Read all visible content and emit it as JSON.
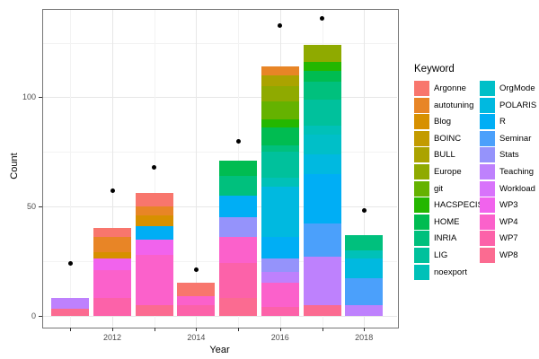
{
  "chart_data": {
    "type": "bar",
    "stacked": true,
    "title": "",
    "xlabel": "Year",
    "ylabel": "Count",
    "legend_title": "Keyword",
    "legend_position": "right",
    "legend_columns": 2,
    "legend_col1_rows": 12,
    "grid": true,
    "x_years": [
      2011,
      2012,
      2013,
      2014,
      2015,
      2016,
      2017,
      2018
    ],
    "x_tick_labels": [
      "2012",
      "2014",
      "2016",
      "2018"
    ],
    "x_labeled_years": [
      2012,
      2014,
      2016,
      2018
    ],
    "y_tick_labels": [
      "0",
      "50",
      "100"
    ],
    "y_ticks": [
      0,
      50,
      100
    ],
    "y_minor_ticks": [
      25,
      75,
      125
    ],
    "ylim": [
      -5,
      140
    ],
    "keywords": [
      {
        "label": "Argonne",
        "color": "#F8766D"
      },
      {
        "label": "autotuning",
        "color": "#E88526"
      },
      {
        "label": "Blog",
        "color": "#D79000"
      },
      {
        "label": "BOINC",
        "color": "#C39B00"
      },
      {
        "label": "BULL",
        "color": "#ABA300"
      },
      {
        "label": "Europe",
        "color": "#8FAA00"
      },
      {
        "label": "git",
        "color": "#65B200"
      },
      {
        "label": "HACSPECIS",
        "color": "#24B700"
      },
      {
        "label": "HOME",
        "color": "#00BC51"
      },
      {
        "label": "INRIA",
        "color": "#00C07D"
      },
      {
        "label": "LIG",
        "color": "#00C19C"
      },
      {
        "label": "noexport",
        "color": "#00C1B8"
      },
      {
        "label": "OrgMode",
        "color": "#00BFC8"
      },
      {
        "label": "POLARIS",
        "color": "#00B9E0"
      },
      {
        "label": "R",
        "color": "#00AEF5"
      },
      {
        "label": "Seminar",
        "color": "#4BA0FB"
      },
      {
        "label": "Stats",
        "color": "#9593FB"
      },
      {
        "label": "Teaching",
        "color": "#BE81FD"
      },
      {
        "label": "Workload",
        "color": "#D873FB"
      },
      {
        "label": "WP3",
        "color": "#F163ED"
      },
      {
        "label": "WP4",
        "color": "#FB61CB"
      },
      {
        "label": "WP7",
        "color": "#FC62A9"
      },
      {
        "label": "WP8",
        "color": "#FB6B91"
      }
    ],
    "bars": [
      {
        "year": 2011,
        "total": 8,
        "segments": [
          {
            "keyword": "Teaching",
            "value": 5
          },
          {
            "keyword": "WP8",
            "value": 3
          }
        ]
      },
      {
        "year": 2012,
        "total": 40,
        "segments": [
          {
            "keyword": "Argonne",
            "value": 4
          },
          {
            "keyword": "autotuning",
            "value": 7
          },
          {
            "keyword": "Blog",
            "value": 3
          },
          {
            "keyword": "WP3",
            "value": 5
          },
          {
            "keyword": "WP4",
            "value": 13
          },
          {
            "keyword": "WP7",
            "value": 8
          }
        ]
      },
      {
        "year": 2013,
        "total": 56,
        "segments": [
          {
            "keyword": "Argonne",
            "value": 6
          },
          {
            "keyword": "autotuning",
            "value": 4
          },
          {
            "keyword": "Blog",
            "value": 5
          },
          {
            "keyword": "R",
            "value": 6
          },
          {
            "keyword": "WP3",
            "value": 7
          },
          {
            "keyword": "WP4",
            "value": 23
          },
          {
            "keyword": "WP8",
            "value": 5
          }
        ]
      },
      {
        "year": 2014,
        "total": 15,
        "segments": [
          {
            "keyword": "Argonne",
            "value": 6
          },
          {
            "keyword": "WP4",
            "value": 4
          },
          {
            "keyword": "WP7",
            "value": 5
          }
        ]
      },
      {
        "year": 2015,
        "total": 71,
        "segments": [
          {
            "keyword": "HOME",
            "value": 7
          },
          {
            "keyword": "INRIA",
            "value": 9
          },
          {
            "keyword": "R",
            "value": 10
          },
          {
            "keyword": "Stats",
            "value": 9
          },
          {
            "keyword": "WP4",
            "value": 12
          },
          {
            "keyword": "WP7",
            "value": 16
          },
          {
            "keyword": "WP8",
            "value": 8
          }
        ]
      },
      {
        "year": 2016,
        "total": 114,
        "segments": [
          {
            "keyword": "autotuning",
            "value": 4
          },
          {
            "keyword": "BULL",
            "value": 5
          },
          {
            "keyword": "Europe",
            "value": 7
          },
          {
            "keyword": "git",
            "value": 8
          },
          {
            "keyword": "HACSPECIS",
            "value": 4
          },
          {
            "keyword": "HOME",
            "value": 8
          },
          {
            "keyword": "INRIA",
            "value": 3
          },
          {
            "keyword": "LIG",
            "value": 12
          },
          {
            "keyword": "noexport",
            "value": 4
          },
          {
            "keyword": "POLARIS",
            "value": 23
          },
          {
            "keyword": "R",
            "value": 10
          },
          {
            "keyword": "Stats",
            "value": 6
          },
          {
            "keyword": "Teaching",
            "value": 5
          },
          {
            "keyword": "WP4",
            "value": 11
          },
          {
            "keyword": "WP7",
            "value": 4
          }
        ]
      },
      {
        "year": 2017,
        "total": 124,
        "segments": [
          {
            "keyword": "Europe",
            "value": 8
          },
          {
            "keyword": "HACSPECIS",
            "value": 4
          },
          {
            "keyword": "HOME",
            "value": 5
          },
          {
            "keyword": "INRIA",
            "value": 8
          },
          {
            "keyword": "LIG",
            "value": 12
          },
          {
            "keyword": "noexport",
            "value": 4
          },
          {
            "keyword": "OrgMode",
            "value": 9
          },
          {
            "keyword": "POLARIS",
            "value": 9
          },
          {
            "keyword": "R",
            "value": 23
          },
          {
            "keyword": "Seminar",
            "value": 15
          },
          {
            "keyword": "Teaching",
            "value": 22
          },
          {
            "keyword": "WP8",
            "value": 5
          }
        ]
      },
      {
        "year": 2018,
        "total": 37,
        "segments": [
          {
            "keyword": "INRIA",
            "value": 7
          },
          {
            "keyword": "noexport",
            "value": 4
          },
          {
            "keyword": "POLARIS",
            "value": 9
          },
          {
            "keyword": "Seminar",
            "value": 12
          },
          {
            "keyword": "Teaching",
            "value": 5
          }
        ]
      }
    ],
    "points": [
      {
        "year": 2011,
        "value": 24
      },
      {
        "year": 2012,
        "value": 57
      },
      {
        "year": 2013,
        "value": 68
      },
      {
        "year": 2014,
        "value": 21
      },
      {
        "year": 2015,
        "value": 80
      },
      {
        "year": 2016,
        "value": 133
      },
      {
        "year": 2017,
        "value": 136
      },
      {
        "year": 2018,
        "value": 48
      }
    ]
  }
}
